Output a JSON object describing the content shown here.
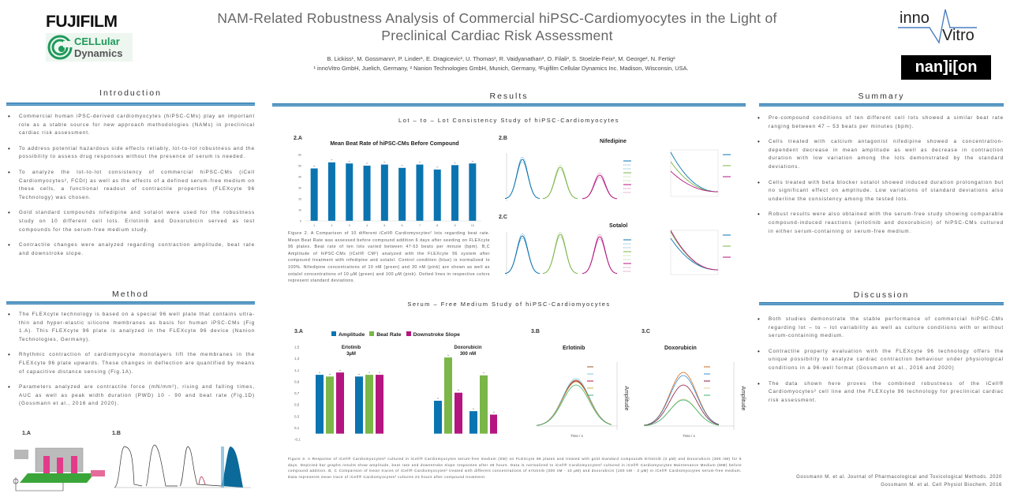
{
  "header": {
    "title_line1": "NAM-Related Robustness Analysis of Commercial hiPSC-Cardiomyocytes in the Light of",
    "title_line2": "Preclinical Cardiac Risk Assessment",
    "authors": "B. Lickiss¹, M. Gossmann¹, P. Linder¹, E. Dragicevic², U. Thomas², R. Vaidyanathan³, O. Filali³, S. Stoelzle-Feix², M. George², N. Fertig²",
    "affiliations": "¹ innoVitro GmbH, Juelich, Germany,  ² Nanion Technologies GmbH, Munich, Germany, ³Fujifilm Cellular Dynamics Inc. Madison, Wisconsin, USA.",
    "logos": {
      "fujifilm": "FUJIFILM",
      "cdi_line1": "CELLular",
      "cdi_line2": "Dynamics",
      "innovitro_1": "inno",
      "innovitro_2": "Vitro",
      "nanion": "nan]i[on"
    }
  },
  "introduction": {
    "heading": "Introduction",
    "bullets": [
      "Commercial human iPSC-derived cardiomyocytes (hiPSC-CMs) play an important role as a stable source for new approach methodologies (NAMs) in preclinical cardiac risk assessment.",
      "To address potential hazardous side effects reliably, lot-to-lot robustness and the possibility to assess drug responses without the presence of serum is needed.",
      "To analyze the lot-to-lot consistency of commercial hiPSC-CMs (iCell Cardiomyocytes², FCDI) as well as the effects of a defined serum-free medium on these cells, a functional readout of contractile properties (FLEXcyte 96 Technology) was chosen.",
      "Gold standard compounds nifedipine and sotalol were used for the robustness study on 10 different cell lots. Erlotinib and Doxorubicin served as test compounds for the serum-free medium study.",
      "Contractile changes were analyzed regarding contraction amplitude, beat rate and downstroke slope."
    ]
  },
  "method": {
    "heading": "Method",
    "bullets": [
      "The FLEXcyte technology is based on a special 96 well plate that contains ultra-thin and hyper-elastic silicone membranes as basis for human iPSC-CMs (Fig 1.A). This FLEXcyte 96 plate is analyzed in the FLEXcyte 96 device (Nanion Technologies, Germany).",
      "Rhythmic contraction of cardiomyocyte monolayers lift the membranes in the FLEXcyte 96 plate upwards. These changes in deflection are quantified by means of capacitive distance sensing (Fig.1A).",
      "Parameters analyzed are contractile force (mN/mm²), rising and falling times, AUC as well as peak width duration (PWD) 10 - 90 and beat rate (Fig.1D) (Gossmann et al., 2016 and 2020)."
    ],
    "fig_1a_label": "1.A",
    "fig_1b_label": "1.B"
  },
  "results": {
    "heading": "Results",
    "lot_study_title": "Lot – to – Lot Consistency Study of hiPSC-Cardiomyocytes",
    "fig2a_label": "2.A",
    "fig2b_label": "2.B",
    "fig2c_label": "2.C",
    "nifedipine_title": "Nifedipine",
    "sotalol_title": "Sotalol",
    "fig2_caption": "Figure 2. A Comparison of 10 different iCell® Cardiomyocytes² lots regarding beat rate. Mean Beat Rate was assessed before compound addition 6 days after seeding on FLEXcyte 96 plates. Beat rate of ten lots varied between 47-53 beats per minute (bpm). B,C Amplitude of hiPSC-CMs (iCell® CM²) analyzed with the FLEXcyte 96 system after compound treatment with nifedipine and sotalol. Control condition (blue) is normalized to 100%. Nifedipine concentrations of 10 nM (green) and 30 nM (pink) are shown as well as sotalol concentrations of 10 µM (green) and 100 µM (pink). Dotted lines in respective colors represent standard deviations.",
    "serum_study_title": "Serum – Free Medium Study of hiPSC-Cardiomyocytes",
    "fig3a_label": "3.A",
    "fig3b_label": "3.B",
    "fig3c_label": "3.C",
    "erlotinib_title": "Erlotinib",
    "doxorubicin_title": "Doxorubicin",
    "amplitude_axis": "Amplitude",
    "time_axis": "Time / s",
    "fig3_caption": "Figure 3. A Response of iCell® Cardiomyocytes² cultured in iCell® Cardiomyocytes serum-free medium (SM) on FLEXcyte 96 plates and treated with gold standard compounds Erlotinib (3 µM) and Doxorubicin (300 nM) for 5 days. Depicted bar graphs results show amplitude, beat rate and downstroke slope responses after 48 hours. Data is normalized to iCell® Cardiomyocytes² cultured in iCell® Cardiomyocytes Maintenance Medium (MM) before compound addition. B, C Comparison of mean traces of iCell® Cardiomyocytes² treated with different concentrations of erlotinib (300 nM - 10 µM) and doxorubicin (100 nM - 3 µM) in iCell® Cardiomyocytes serum-free medium. Data represents mean trace of iCell® Cardiomyocytes² cultures 24 hours after compound treatment."
  },
  "summary": {
    "heading": "Summary",
    "bullets": [
      "Pre-compound conditions of ten different cell lots showed a similar beat rate ranging between 47 – 53 beats per minutes (bpm).",
      "Cells treated with calcium antagonist nifedipine showed a concentration-dependent decrease in mean amplitude as well as decrease in contraction duration with low variation among the lots demonstrated by the standard deviations.",
      "Cells treated with beta blocker sotalol showed induced duration prolongation but no significant effect on amplitude. Low variations of standard deviations also underline the consistency among the tested lots.",
      "Robust results were also obtained with the serum-free study showing comparable compound-induced reactions (erlotinib and doxorubicin) of hiPSC-CMs cultured in either serum-containing or serum-free medium."
    ]
  },
  "discussion": {
    "heading": "Discussion",
    "bullets": [
      "Both studies demonstrate the stable performance of commercial hiPSC-CMs regarding lot – to – lot variability as well as culture conditions with or without serum-containing medium.",
      "Contractile property evaluation with the FLEXcyte 96 technology offers the unique possibility to analyze cardiac contraction behaviour under physiological conditions in a 96-well format (Gossmann et al., 2016 and 2020)",
      "The data shown here proves the combined robustness of the iCell® Cardiomyocytes² cell line and the FLEXcyte 96 technology for preclinical cardiac risk assessment."
    ],
    "references": [
      "Gossmann M. et al. Journal of Pharmacological and Toxicological Methods. 2020",
      "Gossmann M. et al. Cell Physiol Biochem. 2016"
    ]
  },
  "colors": {
    "blue": "#0a74b0",
    "green": "#7ab648",
    "magenta": "#b5157f",
    "header_bar": "#1a6fa8"
  },
  "chart_data": [
    {
      "type": "bar",
      "title": "Mean Beat Rate of hiPSC-CMs Before Compound",
      "categories": [
        "1",
        "2",
        "3",
        "4",
        "5",
        "6",
        "7",
        "8",
        "9",
        "10"
      ],
      "values": [
        47.5,
        53,
        52,
        50,
        51,
        48,
        51,
        46.5,
        50.5,
        52
      ],
      "yticks": [
        0,
        10,
        20,
        30,
        40,
        50,
        60
      ],
      "ylim": [
        0,
        60
      ],
      "error_bars": true
    },
    {
      "type": "bar",
      "legend_position": "top",
      "categories": [
        "MM",
        "SF",
        "MM",
        "SF"
      ],
      "groups": [
        {
          "label_line1": "Erlotinib",
          "label_line2": "3µM"
        },
        {
          "label_line1": "Doxorubicin",
          "label_line2": "300 nM"
        }
      ],
      "series": [
        {
          "name": "Amplitude",
          "values": [
            1.02,
            0.99,
            0.57,
            0.39
          ]
        },
        {
          "name": "Beat Rate",
          "values": [
            0.99,
            1.02,
            1.32,
            1.01
          ]
        },
        {
          "name": "Downstroke Slope",
          "values": [
            1.06,
            1.02,
            0.71,
            0.33
          ]
        }
      ],
      "yticks": [
        "1,5",
        "1,3",
        "1,1",
        "0,9",
        "0,7",
        "0,5",
        "0,3",
        "0,1",
        "-0,1"
      ],
      "ylim": [
        -0.1,
        1.5
      ]
    }
  ]
}
